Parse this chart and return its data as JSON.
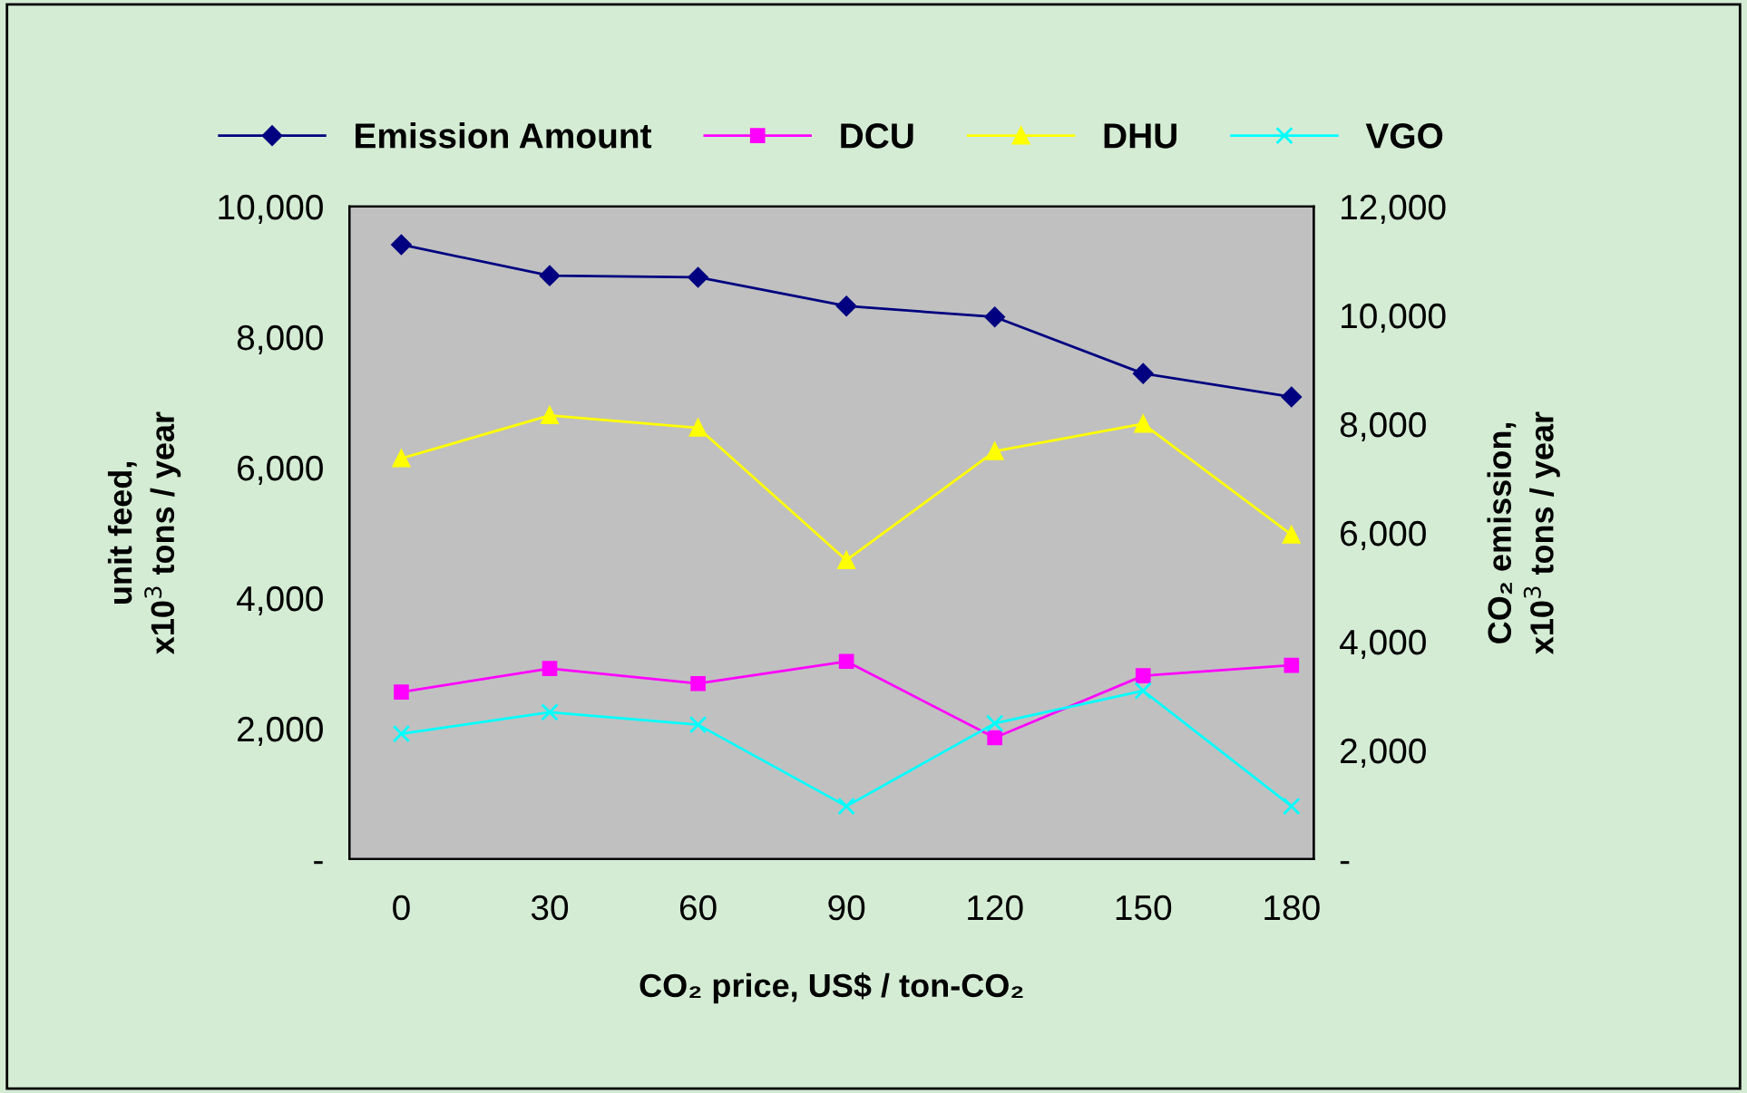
{
  "chart_data": {
    "type": "line",
    "xlabel": "CO₂ price, US$ / ton-CO₂",
    "ylabel": "unit feed,\nx10$^{3}$ tons / year",
    "y2label": "CO₂ emission,\nx10$^{3}$ tons / year",
    "categories": [
      "0",
      "30",
      "60",
      "90",
      "120",
      "150",
      "180"
    ],
    "series": [
      {
        "name": "Emission Amount",
        "color": "#000080",
        "marker": "diamond",
        "axis": "y2",
        "values": [
          11300,
          10730,
          10700,
          10170,
          9970,
          8930,
          8500
        ]
      },
      {
        "name": "DCU",
        "color": "#ff00ff",
        "marker": "square",
        "values": [
          2560,
          2920,
          2690,
          3030,
          1860,
          2810,
          2970
        ]
      },
      {
        "name": "DHU",
        "color": "#ffff00",
        "marker": "triangle",
        "values": [
          6140,
          6800,
          6610,
          4580,
          6250,
          6670,
          4970
        ]
      },
      {
        "name": "VGO",
        "color": "#00ffff",
        "marker": "cross",
        "values": [
          1920,
          2250,
          2060,
          810,
          2080,
          2580,
          810
        ]
      }
    ],
    "ylim": [
      0,
      10000
    ],
    "yticks": [
      {
        "value": 0,
        "label": "-"
      },
      {
        "value": 2000,
        "label": "2,000"
      },
      {
        "value": 4000,
        "label": "4,000"
      },
      {
        "value": 6000,
        "label": "6,000"
      },
      {
        "value": 8000,
        "label": "8,000"
      },
      {
        "value": 10000,
        "label": "10,000"
      }
    ],
    "y2lim": [
      0,
      12000
    ],
    "y2ticks": [
      {
        "value": 0,
        "label": "-"
      },
      {
        "value": 2000,
        "label": "2,000"
      },
      {
        "value": 4000,
        "label": "4,000"
      },
      {
        "value": 6000,
        "label": "6,000"
      },
      {
        "value": 8000,
        "label": "8,000"
      },
      {
        "value": 10000,
        "label": "10,000"
      },
      {
        "value": 12000,
        "label": "12,000"
      }
    ],
    "grid": false,
    "legend": "top",
    "line_style": "solid"
  }
}
